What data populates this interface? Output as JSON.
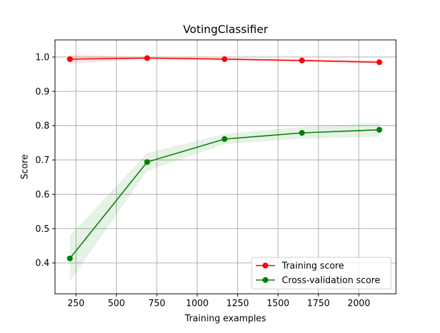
{
  "chart_data": {
    "type": "line",
    "title": "VotingClassifier",
    "xlabel": "Training examples",
    "ylabel": "Score",
    "xlim": [
      120,
      2230
    ],
    "ylim": [
      0.31,
      1.05
    ],
    "x_ticks": [
      250,
      500,
      750,
      1000,
      1250,
      1500,
      1750,
      2000
    ],
    "x_tick_labels": [
      "250",
      "500",
      "750",
      "1000",
      "1250",
      "1500",
      "1750",
      "2000"
    ],
    "y_ticks": [
      0.4,
      0.5,
      0.6,
      0.7,
      0.8,
      0.9,
      1.0
    ],
    "y_tick_labels": [
      "0.4",
      "0.5",
      "0.6",
      "0.7",
      "0.8",
      "0.9",
      "1.0"
    ],
    "grid": true,
    "legend_position": "lower-right",
    "x": [
      212,
      690,
      1169,
      1648,
      2127
    ],
    "series": [
      {
        "name": "Training score",
        "color": "#ff0000",
        "values": [
          0.994,
          0.997,
          0.994,
          0.99,
          0.985
        ],
        "band_lower": [
          0.98,
          0.995,
          0.99,
          0.986,
          0.979
        ],
        "band_upper": [
          1.008,
          0.999,
          0.998,
          0.994,
          0.991
        ]
      },
      {
        "name": "Cross-validation score",
        "color": "#008000",
        "values": [
          0.413,
          0.694,
          0.761,
          0.779,
          0.788
        ],
        "band_lower": [
          0.347,
          0.668,
          0.746,
          0.762,
          0.768
        ],
        "band_upper": [
          0.479,
          0.72,
          0.776,
          0.796,
          0.808
        ]
      }
    ]
  }
}
